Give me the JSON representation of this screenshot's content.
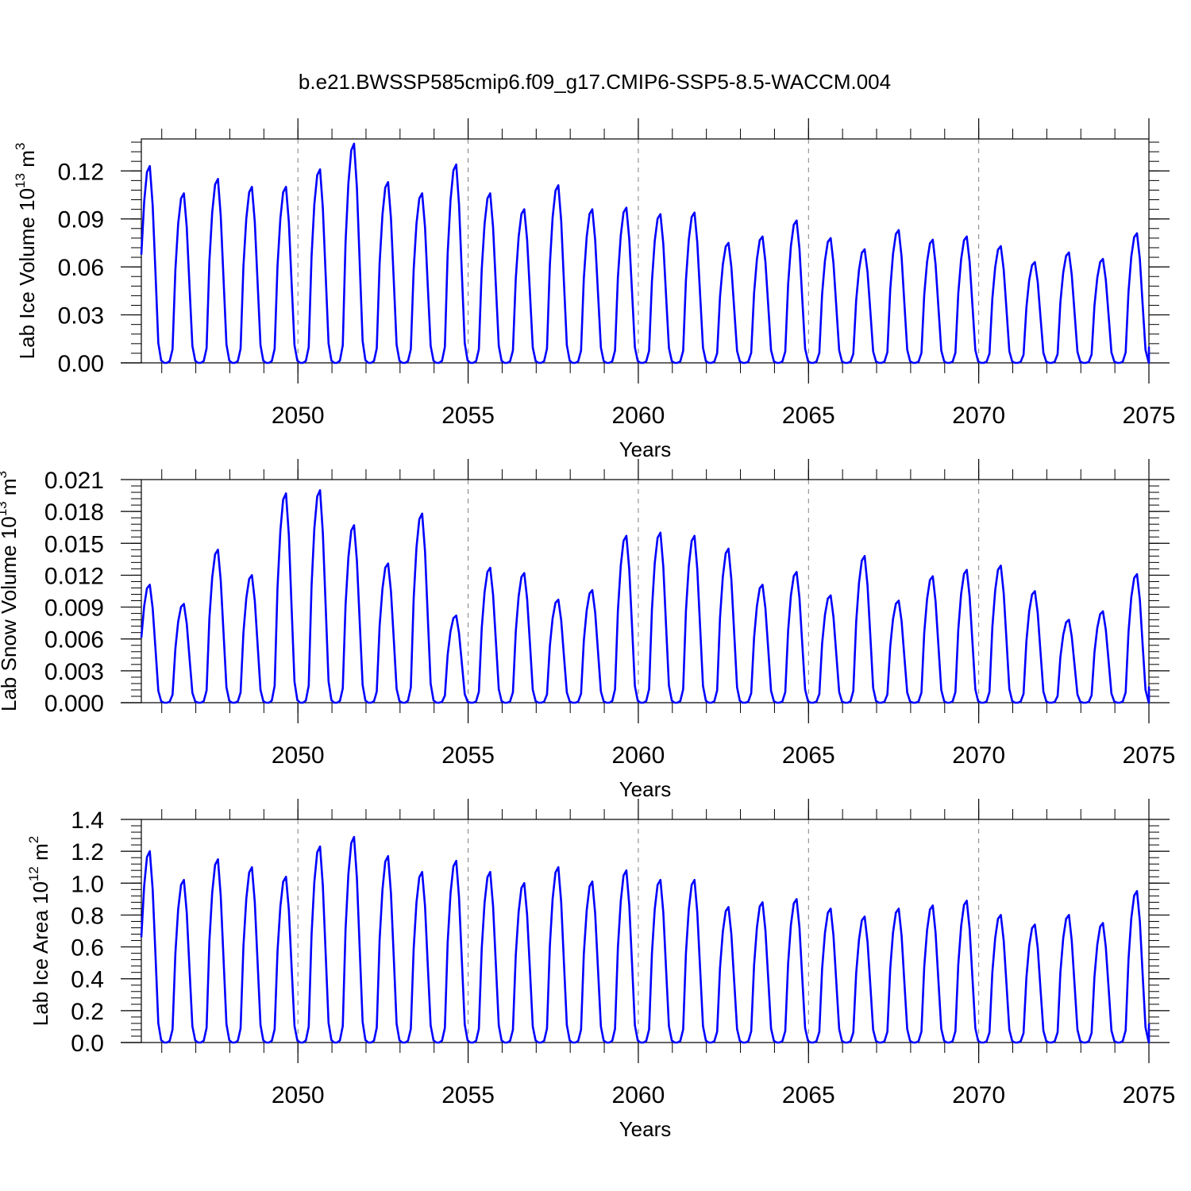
{
  "title": "b.e21.BWSSP585cmip6.f09_g17.CMIP6-SSP5-8.5-WACCM.004",
  "colors": {
    "line": "#0000ff",
    "axis": "#000000",
    "grid": "#808080"
  },
  "chart_data": [
    {
      "type": "line",
      "ylabel_main": "Lab Ice Volume 10",
      "ylabel_sup": "13",
      "ylabel_unit": " m",
      "ylabel_unit_sup": "3",
      "xlabel": "Years",
      "xlim": [
        2045.4,
        2075
      ],
      "ylim": [
        0,
        0.14
      ],
      "yticks": [
        0,
        0.03,
        0.06,
        0.09,
        0.12
      ],
      "ytick_labels": [
        "0.00",
        "0.03",
        "0.06",
        "0.09",
        "0.12"
      ],
      "ytick_minor_step": 0.006,
      "xticks": [
        2050,
        2055,
        2060,
        2065,
        2070,
        2075
      ],
      "xtick_labels": [
        "2050",
        "2055",
        "2060",
        "2065",
        "2070",
        "2075"
      ],
      "grid_x": [
        2050,
        2055,
        2060,
        2065,
        2070
      ],
      "series": [
        {
          "name": "Lab Ice Volume",
          "peaks": [
            0.123,
            0.106,
            0.115,
            0.11,
            0.11,
            0.121,
            0.137,
            0.113,
            0.106,
            0.124,
            0.106,
            0.096,
            0.111,
            0.096,
            0.097,
            0.093,
            0.094,
            0.075,
            0.079,
            0.089,
            0.078,
            0.071,
            0.083,
            0.077,
            0.079,
            0.073,
            0.063,
            0.069,
            0.065,
            0.081
          ]
        }
      ]
    },
    {
      "type": "line",
      "ylabel_main": "Lab Snow Volume 10",
      "ylabel_sup": "13",
      "ylabel_unit": " m",
      "ylabel_unit_sup": "3",
      "xlabel": "Years",
      "xlim": [
        2045.4,
        2075
      ],
      "ylim": [
        0,
        0.021
      ],
      "yticks": [
        0,
        0.003,
        0.006,
        0.009,
        0.012,
        0.015,
        0.018,
        0.021
      ],
      "ytick_labels": [
        "0.000",
        "0.003",
        "0.006",
        "0.009",
        "0.012",
        "0.015",
        "0.018",
        "0.021"
      ],
      "ytick_minor_step": 0.0006,
      "xticks": [
        2050,
        2055,
        2060,
        2065,
        2070,
        2075
      ],
      "xtick_labels": [
        "2050",
        "2055",
        "2060",
        "2065",
        "2070",
        "2075"
      ],
      "grid_x": [
        2055,
        2060,
        2065,
        2070
      ],
      "series": [
        {
          "name": "Lab Snow Volume",
          "peaks": [
            0.0111,
            0.0093,
            0.0144,
            0.012,
            0.0197,
            0.02,
            0.0167,
            0.0131,
            0.0178,
            0.0082,
            0.0127,
            0.0122,
            0.0097,
            0.0106,
            0.0157,
            0.016,
            0.0157,
            0.0145,
            0.0111,
            0.0123,
            0.0101,
            0.0138,
            0.0096,
            0.0119,
            0.0125,
            0.0129,
            0.0105,
            0.0078,
            0.0086,
            0.0121
          ]
        }
      ]
    },
    {
      "type": "line",
      "ylabel_main": "Lab Ice Area 10",
      "ylabel_sup": "12",
      "ylabel_unit": " m",
      "ylabel_unit_sup": "2",
      "xlabel": "Years",
      "xlim": [
        2045.4,
        2075
      ],
      "ylim": [
        0,
        1.4
      ],
      "yticks": [
        0,
        0.2,
        0.4,
        0.6,
        0.8,
        1.0,
        1.2,
        1.4
      ],
      "ytick_labels": [
        "0.0",
        "0.2",
        "0.4",
        "0.6",
        "0.8",
        "1.0",
        "1.2",
        "1.4"
      ],
      "ytick_minor_step": 0.04,
      "xticks": [
        2050,
        2055,
        2060,
        2065,
        2070,
        2075
      ],
      "xtick_labels": [
        "2050",
        "2055",
        "2060",
        "2065",
        "2070",
        "2075"
      ],
      "grid_x": [
        2050,
        2055,
        2060,
        2065,
        2070
      ],
      "series": [
        {
          "name": "Lab Ice Area",
          "peaks": [
            1.2,
            1.02,
            1.15,
            1.1,
            1.04,
            1.23,
            1.29,
            1.17,
            1.07,
            1.14,
            1.07,
            1.0,
            1.1,
            1.01,
            1.08,
            1.02,
            1.02,
            0.85,
            0.88,
            0.9,
            0.84,
            0.79,
            0.84,
            0.86,
            0.89,
            0.8,
            0.74,
            0.8,
            0.75,
            0.95
          ]
        }
      ]
    }
  ]
}
